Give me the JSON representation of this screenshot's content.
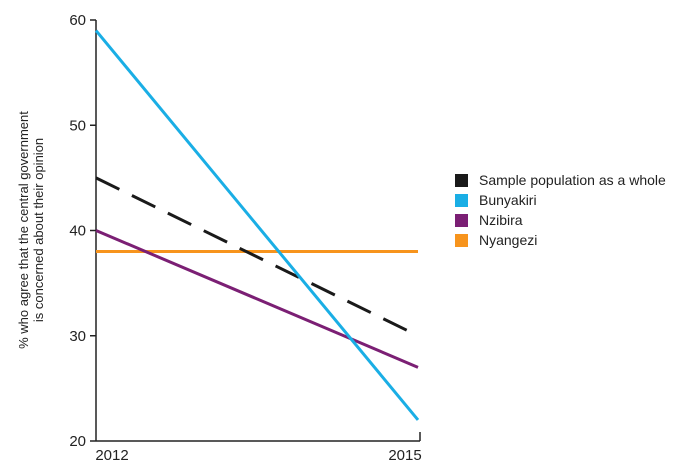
{
  "chart_data": {
    "type": "line",
    "x": [
      2012,
      2015
    ],
    "x_tick_labels": [
      "2012",
      "2015"
    ],
    "ylabel_lines": [
      "% who agree that the central government",
      "is concerned about their opinion"
    ],
    "ylim": [
      20,
      60
    ],
    "y_ticks": [
      20,
      30,
      40,
      50,
      60
    ],
    "grid": false,
    "legend_position": "right",
    "series": [
      {
        "name": "Sample population as a whole",
        "values": [
          45,
          30
        ],
        "color": "#1a1a1a",
        "dashed": true
      },
      {
        "name": "Bunyakiri",
        "values": [
          59,
          22
        ],
        "color": "#1aaee5",
        "dashed": false
      },
      {
        "name": "Nzibira",
        "values": [
          40,
          27
        ],
        "color": "#7b1f74",
        "dashed": false
      },
      {
        "name": "Nyangezi",
        "values": [
          38,
          38
        ],
        "color": "#f7941d",
        "dashed": false
      }
    ]
  }
}
